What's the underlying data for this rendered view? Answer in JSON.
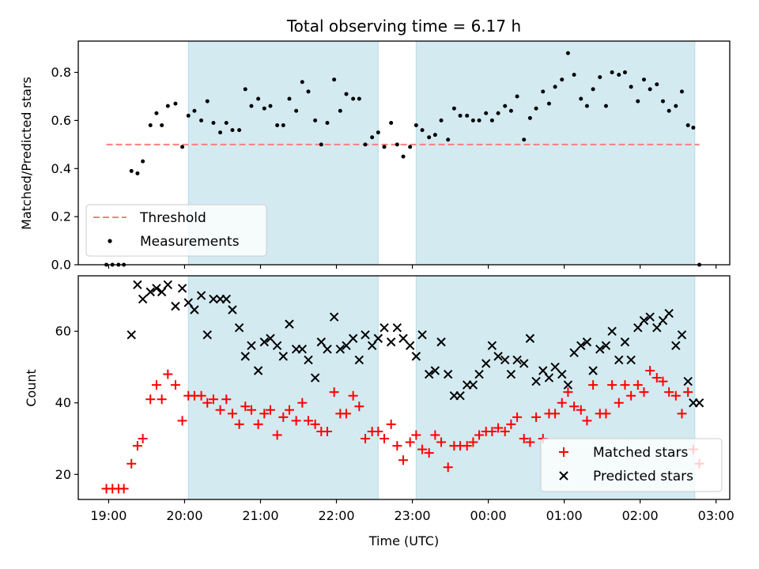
{
  "chart_data": [
    {
      "type": "scatter",
      "title": "Total observing time = 6.17 h",
      "xlabel": "",
      "ylabel": "Matched/Predicted stars",
      "ylim": [
        0,
        0.93
      ],
      "yticks": [
        "0.0",
        "0.2",
        "0.4",
        "0.6",
        "0.8"
      ],
      "xlim": [
        18.6,
        27.18
      ],
      "shaded_intervals": [
        [
          20.05,
          22.55
        ],
        [
          23.05,
          26.72
        ]
      ],
      "shade_color": "#d3eaf1",
      "threshold": {
        "name": "Threshold",
        "value": 0.5,
        "x_range": [
          18.97,
          26.78
        ],
        "color": "#ff7f7f"
      },
      "legend": {
        "position": "lower-left",
        "entries": [
          "Threshold",
          "Measurements"
        ]
      },
      "series": [
        {
          "name": "Measurements",
          "color": "#000000",
          "x": [
            18.97,
            19.05,
            19.13,
            19.2,
            19.3,
            19.38,
            19.45,
            19.55,
            19.63,
            19.7,
            19.78,
            19.88,
            19.97,
            20.05,
            20.13,
            20.22,
            20.3,
            20.38,
            20.47,
            20.55,
            20.63,
            20.72,
            20.8,
            20.88,
            20.97,
            21.05,
            21.13,
            21.22,
            21.3,
            21.38,
            21.47,
            21.55,
            21.63,
            21.72,
            21.8,
            21.88,
            21.97,
            22.05,
            22.13,
            22.22,
            22.3,
            22.38,
            22.47,
            22.55,
            22.63,
            22.72,
            22.8,
            22.88,
            22.97,
            23.05,
            23.13,
            23.22,
            23.3,
            23.38,
            23.47,
            23.55,
            23.63,
            23.72,
            23.8,
            23.88,
            23.97,
            24.05,
            24.13,
            24.22,
            24.3,
            24.38,
            24.47,
            24.55,
            24.63,
            24.72,
            24.8,
            24.88,
            24.97,
            25.05,
            25.13,
            25.22,
            25.3,
            25.38,
            25.47,
            25.55,
            25.63,
            25.72,
            25.8,
            25.88,
            25.97,
            26.05,
            26.13,
            26.22,
            26.3,
            26.38,
            26.47,
            26.55,
            26.63,
            26.7,
            26.78
          ],
          "y": [
            0.0,
            0.0,
            0.0,
            0.0,
            0.39,
            0.38,
            0.43,
            0.58,
            0.63,
            0.58,
            0.66,
            0.67,
            0.49,
            0.62,
            0.64,
            0.6,
            0.68,
            0.59,
            0.55,
            0.59,
            0.56,
            0.56,
            0.73,
            0.66,
            0.69,
            0.65,
            0.66,
            0.58,
            0.58,
            0.69,
            0.64,
            0.76,
            0.72,
            0.6,
            0.5,
            0.59,
            0.77,
            0.64,
            0.71,
            0.69,
            0.69,
            0.5,
            0.53,
            0.55,
            0.49,
            0.59,
            0.5,
            0.45,
            0.49,
            0.58,
            0.56,
            0.53,
            0.54,
            0.6,
            0.52,
            0.65,
            0.62,
            0.62,
            0.6,
            0.6,
            0.63,
            0.6,
            0.63,
            0.66,
            0.64,
            0.7,
            0.52,
            0.61,
            0.65,
            0.72,
            0.67,
            0.74,
            0.77,
            0.88,
            0.79,
            0.69,
            0.66,
            0.73,
            0.78,
            0.66,
            0.8,
            0.79,
            0.8,
            0.74,
            0.68,
            0.77,
            0.73,
            0.75,
            0.68,
            0.64,
            0.66,
            0.72,
            0.58,
            0.57,
            0.0
          ]
        }
      ]
    },
    {
      "type": "scatter",
      "title": "",
      "xlabel": "Time (UTC)",
      "ylabel": "Count",
      "ylim": [
        13,
        75.5
      ],
      "yticks": [
        "20",
        "40",
        "60"
      ],
      "xlim": [
        18.6,
        27.18
      ],
      "xticks": [
        "19:00",
        "20:00",
        "21:00",
        "22:00",
        "23:00",
        "00:00",
        "01:00",
        "02:00",
        "03:00"
      ],
      "shaded_intervals": [
        [
          20.05,
          22.55
        ],
        [
          23.05,
          26.72
        ]
      ],
      "shade_color": "#d3eaf1",
      "legend": {
        "position": "lower-right",
        "entries": [
          "Matched stars",
          "Predicted stars"
        ]
      },
      "series": [
        {
          "name": "Matched stars",
          "marker": "plus",
          "color": "#ff0000",
          "x": [
            18.97,
            19.05,
            19.13,
            19.2,
            19.3,
            19.38,
            19.45,
            19.55,
            19.63,
            19.7,
            19.78,
            19.88,
            19.97,
            20.05,
            20.13,
            20.22,
            20.3,
            20.38,
            20.47,
            20.55,
            20.63,
            20.72,
            20.8,
            20.88,
            20.97,
            21.05,
            21.13,
            21.22,
            21.3,
            21.38,
            21.47,
            21.55,
            21.63,
            21.72,
            21.8,
            21.88,
            21.97,
            22.05,
            22.13,
            22.22,
            22.3,
            22.38,
            22.47,
            22.55,
            22.63,
            22.72,
            22.8,
            22.88,
            22.97,
            23.05,
            23.13,
            23.22,
            23.3,
            23.38,
            23.47,
            23.55,
            23.63,
            23.72,
            23.8,
            23.88,
            23.97,
            24.05,
            24.13,
            24.22,
            24.3,
            24.38,
            24.47,
            24.55,
            24.63,
            24.72,
            24.8,
            24.88,
            24.97,
            25.05,
            25.13,
            25.22,
            25.3,
            25.38,
            25.47,
            25.55,
            25.63,
            25.72,
            25.8,
            25.88,
            25.97,
            26.05,
            26.13,
            26.22,
            26.3,
            26.38,
            26.47,
            26.55,
            26.63,
            26.7,
            26.78
          ],
          "y": [
            16,
            16,
            16,
            16,
            23,
            28,
            30,
            41,
            45,
            41,
            48,
            45,
            35,
            42,
            42,
            42,
            40,
            41,
            38,
            41,
            37,
            34,
            39,
            38,
            34,
            37,
            38,
            31,
            36,
            38,
            35,
            40,
            35,
            34,
            32,
            32,
            43,
            37,
            37,
            42,
            39,
            30,
            32,
            32,
            30,
            34,
            28,
            24,
            29,
            31,
            27,
            26,
            31,
            29,
            22,
            28,
            28,
            28,
            29,
            31,
            32,
            32,
            33,
            32,
            34,
            36,
            30,
            29,
            36,
            30,
            37,
            37,
            40,
            43,
            39,
            38,
            35,
            45,
            37,
            37,
            45,
            40,
            45,
            42,
            45,
            43,
            49,
            47,
            46,
            43,
            42,
            37,
            43,
            27,
            23
          ]
        },
        {
          "name": "Predicted stars",
          "marker": "x",
          "color": "#000000",
          "x": [
            19.3,
            19.38,
            19.45,
            19.55,
            19.63,
            19.7,
            19.78,
            19.88,
            19.97,
            20.05,
            20.13,
            20.22,
            20.3,
            20.38,
            20.47,
            20.55,
            20.63,
            20.72,
            20.8,
            20.88,
            20.97,
            21.05,
            21.13,
            21.22,
            21.3,
            21.38,
            21.47,
            21.55,
            21.63,
            21.72,
            21.8,
            21.88,
            21.97,
            22.05,
            22.13,
            22.22,
            22.3,
            22.38,
            22.47,
            22.55,
            22.63,
            22.72,
            22.8,
            22.88,
            22.97,
            23.05,
            23.13,
            23.22,
            23.3,
            23.38,
            23.47,
            23.55,
            23.63,
            23.72,
            23.8,
            23.88,
            23.97,
            24.05,
            24.13,
            24.22,
            24.3,
            24.38,
            24.47,
            24.55,
            24.63,
            24.72,
            24.8,
            24.88,
            24.97,
            25.05,
            25.13,
            25.22,
            25.3,
            25.38,
            25.47,
            25.55,
            25.63,
            25.72,
            25.8,
            25.88,
            25.97,
            26.05,
            26.13,
            26.22,
            26.3,
            26.38,
            26.47,
            26.55,
            26.63,
            26.7,
            26.78
          ],
          "y": [
            59,
            73,
            69,
            71,
            72,
            71,
            73,
            67,
            72,
            68,
            66,
            70,
            59,
            69,
            69,
            69,
            66,
            61,
            53,
            56,
            49,
            57,
            58,
            56,
            53,
            62,
            55,
            55,
            52,
            47,
            57,
            55,
            64,
            55,
            56,
            58,
            52,
            59,
            56,
            58,
            61,
            57,
            61,
            58,
            56,
            53,
            59,
            48,
            49,
            57,
            48,
            42,
            42,
            45,
            45,
            48,
            51,
            56,
            53,
            52,
            48,
            52,
            51,
            58,
            46,
            49,
            47,
            50,
            48,
            45,
            54,
            56,
            57,
            49,
            55,
            56,
            60,
            52,
            57,
            52,
            61,
            63,
            64,
            61,
            63,
            65,
            56,
            59,
            46,
            40,
            40
          ]
        }
      ]
    }
  ]
}
